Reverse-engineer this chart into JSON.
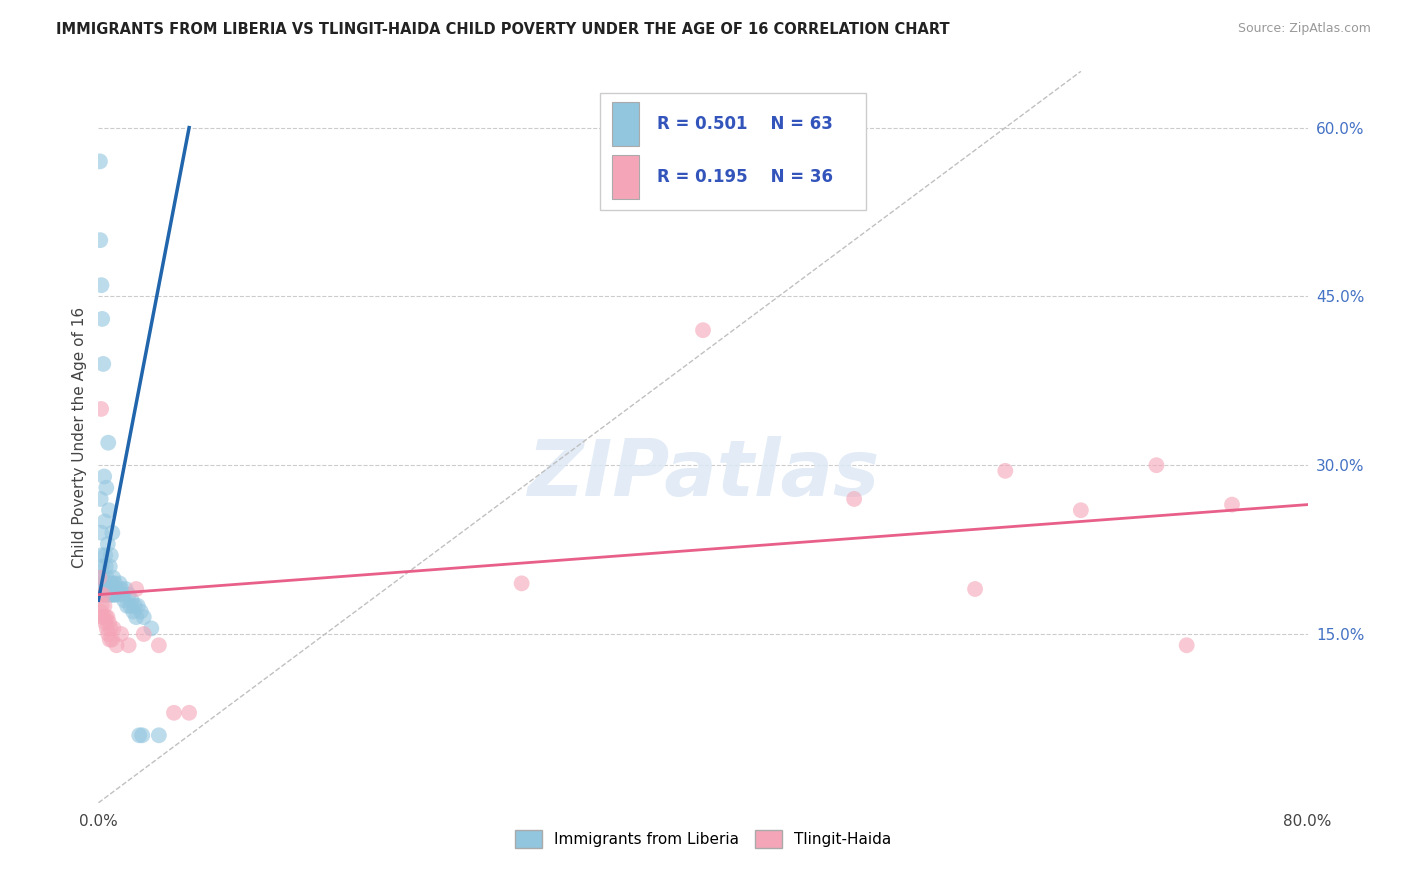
{
  "title": "IMMIGRANTS FROM LIBERIA VS TLINGIT-HAIDA CHILD POVERTY UNDER THE AGE OF 16 CORRELATION CHART",
  "source": "Source: ZipAtlas.com",
  "ylabel": "Child Poverty Under the Age of 16",
  "xlim": [
    0.0,
    0.8
  ],
  "ylim": [
    0.0,
    0.65
  ],
  "xtick_positions": [
    0.0,
    0.1,
    0.2,
    0.3,
    0.4,
    0.5,
    0.6,
    0.7,
    0.8
  ],
  "xticklabels": [
    "0.0%",
    "",
    "",
    "",
    "",
    "",
    "",
    "",
    "80.0%"
  ],
  "ytick_positions": [
    0.15,
    0.3,
    0.45,
    0.6
  ],
  "ytick_labels": [
    "15.0%",
    "30.0%",
    "45.0%",
    "60.0%"
  ],
  "legend_R1": "0.501",
  "legend_N1": "63",
  "legend_R2": "0.195",
  "legend_N2": "36",
  "color_blue": "#92c5de",
  "color_pink": "#f4a6b8",
  "color_line_blue": "#2166ac",
  "color_line_pink": "#e8608a",
  "watermark": "ZIPatlas",
  "blue_x": [
    0.0008,
    0.001,
    0.0012,
    0.0015,
    0.0018,
    0.002,
    0.002,
    0.0022,
    0.0025,
    0.0028,
    0.003,
    0.0032,
    0.0035,
    0.0038,
    0.004,
    0.0042,
    0.0045,
    0.0048,
    0.005,
    0.0052,
    0.0055,
    0.0058,
    0.006,
    0.0062,
    0.0065,
    0.0068,
    0.007,
    0.0072,
    0.0075,
    0.0078,
    0.008,
    0.0082,
    0.0085,
    0.0088,
    0.009,
    0.0092,
    0.0095,
    0.0098,
    0.01,
    0.0105,
    0.011,
    0.0115,
    0.012,
    0.013,
    0.014,
    0.015,
    0.016,
    0.017,
    0.018,
    0.019,
    0.02,
    0.021,
    0.022,
    0.023,
    0.024,
    0.025,
    0.026,
    0.027,
    0.028,
    0.029,
    0.03,
    0.035,
    0.04
  ],
  "blue_y": [
    0.2,
    0.57,
    0.5,
    0.27,
    0.24,
    0.46,
    0.22,
    0.21,
    0.43,
    0.2,
    0.195,
    0.39,
    0.19,
    0.29,
    0.185,
    0.25,
    0.22,
    0.21,
    0.185,
    0.28,
    0.2,
    0.195,
    0.19,
    0.23,
    0.32,
    0.185,
    0.26,
    0.195,
    0.21,
    0.185,
    0.19,
    0.22,
    0.185,
    0.195,
    0.19,
    0.24,
    0.185,
    0.2,
    0.185,
    0.19,
    0.195,
    0.185,
    0.19,
    0.185,
    0.195,
    0.19,
    0.185,
    0.18,
    0.19,
    0.175,
    0.185,
    0.175,
    0.18,
    0.17,
    0.175,
    0.165,
    0.175,
    0.06,
    0.17,
    0.06,
    0.165,
    0.155,
    0.06
  ],
  "pink_x": [
    0.0008,
    0.0012,
    0.0015,
    0.0018,
    0.0022,
    0.0025,
    0.003,
    0.0035,
    0.004,
    0.0045,
    0.005,
    0.0055,
    0.006,
    0.0065,
    0.007,
    0.0075,
    0.008,
    0.009,
    0.01,
    0.012,
    0.015,
    0.02,
    0.025,
    0.03,
    0.04,
    0.05,
    0.06,
    0.28,
    0.4,
    0.5,
    0.58,
    0.6,
    0.65,
    0.7,
    0.72,
    0.75
  ],
  "pink_y": [
    0.2,
    0.17,
    0.185,
    0.35,
    0.175,
    0.165,
    0.185,
    0.165,
    0.175,
    0.16,
    0.165,
    0.155,
    0.165,
    0.15,
    0.16,
    0.145,
    0.155,
    0.145,
    0.155,
    0.14,
    0.15,
    0.14,
    0.19,
    0.15,
    0.14,
    0.08,
    0.08,
    0.195,
    0.42,
    0.27,
    0.19,
    0.295,
    0.26,
    0.3,
    0.14,
    0.265
  ],
  "blue_line_x": [
    0.0,
    0.06
  ],
  "blue_line_y": [
    0.18,
    0.6
  ],
  "pink_line_x": [
    0.0,
    0.8
  ],
  "pink_line_y": [
    0.185,
    0.265
  ],
  "diag_line_x": [
    0.0,
    0.65
  ],
  "diag_line_y": [
    0.0,
    0.65
  ],
  "legend_entries": [
    "Immigrants from Liberia",
    "Tlingit-Haida"
  ]
}
